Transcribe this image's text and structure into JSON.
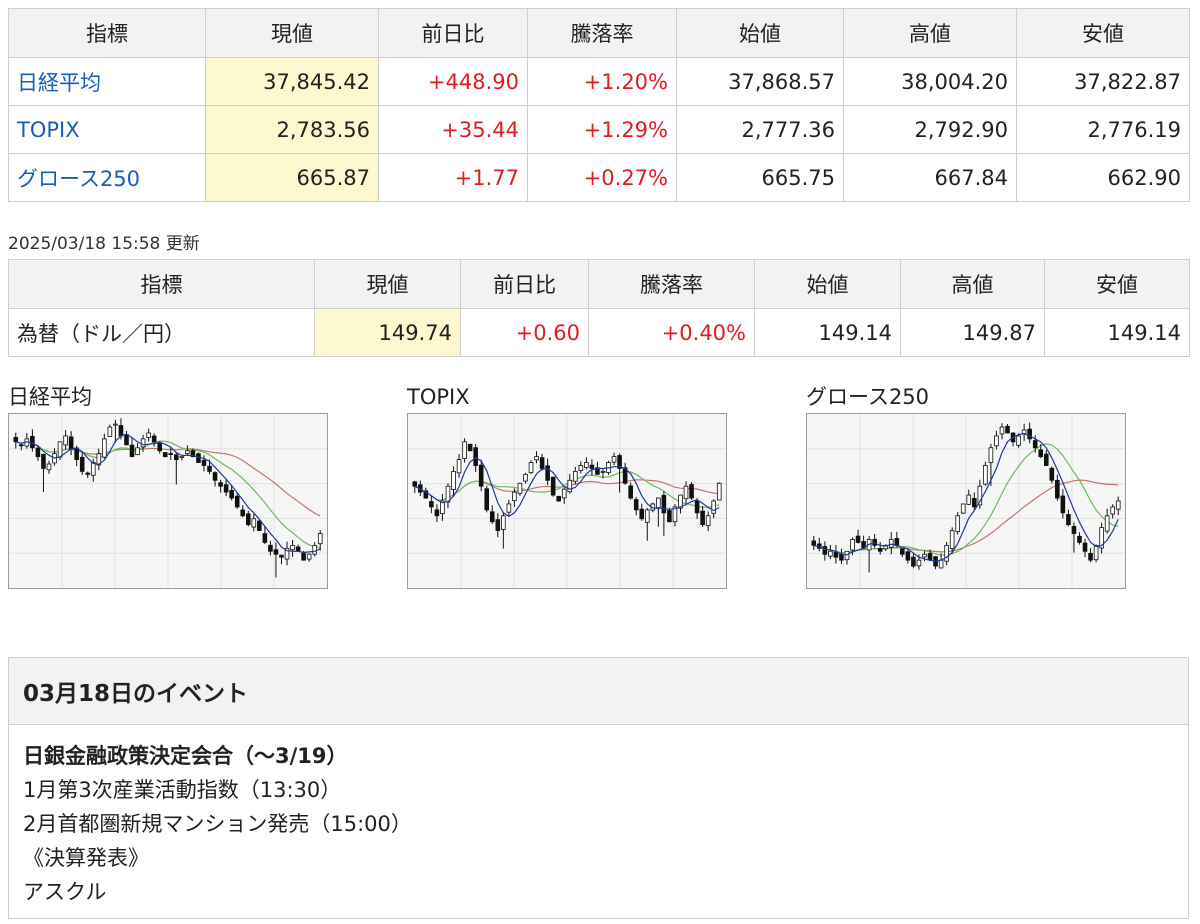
{
  "table1": {
    "headers": [
      "指標",
      "現値",
      "前日比",
      "騰落率",
      "始値",
      "高値",
      "安値"
    ],
    "rows": [
      {
        "name": "日経平均",
        "current": "37,845.42",
        "change": "+448.90",
        "rate": "+1.20%",
        "open": "37,868.57",
        "high": "38,004.20",
        "low": "37,822.87"
      },
      {
        "name": "TOPIX",
        "current": "2,783.56",
        "change": "+35.44",
        "rate": "+1.29%",
        "open": "2,777.36",
        "high": "2,792.90",
        "low": "2,776.19"
      },
      {
        "name": "グロース250",
        "current": "665.87",
        "change": "+1.77",
        "rate": "+0.27%",
        "open": "665.75",
        "high": "667.84",
        "low": "662.90"
      }
    ]
  },
  "updated": "2025/03/18 15:58 更新",
  "table2": {
    "headers": [
      "指標",
      "現値",
      "前日比",
      "騰落率",
      "始値",
      "高値",
      "安値"
    ],
    "rows": [
      {
        "name": "為替（ドル／円）",
        "current": "149.74",
        "change": "+0.60",
        "rate": "+0.40%",
        "open": "149.14",
        "high": "149.87",
        "low": "149.14"
      }
    ]
  },
  "charts": [
    {
      "title": "日経平均",
      "seed": 11,
      "closes": [
        0.4,
        0.38,
        0.42,
        0.36,
        0.3,
        0.22,
        0.25,
        0.32,
        0.4,
        0.44,
        0.35,
        0.28,
        0.2,
        0.18,
        0.26,
        0.32,
        0.42,
        0.5,
        0.52,
        0.44,
        0.38,
        0.3,
        0.36,
        0.42,
        0.46,
        0.4,
        0.34,
        0.3,
        0.32,
        0.28,
        0.3,
        0.34,
        0.3,
        0.26,
        0.24,
        0.2,
        0.14,
        0.1,
        0.06,
        0.02,
        -0.04,
        -0.1,
        -0.16,
        -0.12,
        -0.2,
        -0.28,
        -0.34,
        -0.36,
        -0.38,
        -0.32,
        -0.3,
        -0.34,
        -0.4,
        -0.36,
        -0.3,
        -0.22
      ]
    },
    {
      "title": "TOPIX",
      "seed": 23,
      "closes": [
        0.1,
        0.06,
        0.02,
        -0.04,
        -0.1,
        0.0,
        0.1,
        0.2,
        0.28,
        0.4,
        0.34,
        0.24,
        0.1,
        -0.06,
        -0.14,
        -0.2,
        -0.1,
        -0.02,
        0.06,
        0.12,
        0.18,
        0.26,
        0.3,
        0.22,
        0.14,
        0.04,
        0.0,
        0.08,
        0.14,
        0.2,
        0.24,
        0.26,
        0.22,
        0.18,
        0.2,
        0.26,
        0.3,
        0.22,
        0.12,
        0.02,
        -0.06,
        -0.12,
        -0.06,
        -0.02,
        0.02,
        -0.08,
        -0.14,
        -0.04,
        0.04,
        0.1,
        0.02,
        -0.08,
        -0.16,
        -0.1,
        0.0,
        0.12
      ]
    },
    {
      "title": "グロース250",
      "seed": 37,
      "closes": [
        -0.3,
        -0.32,
        -0.36,
        -0.34,
        -0.38,
        -0.4,
        -0.34,
        -0.26,
        -0.28,
        -0.32,
        -0.26,
        -0.3,
        -0.34,
        -0.3,
        -0.26,
        -0.3,
        -0.36,
        -0.4,
        -0.44,
        -0.4,
        -0.36,
        -0.4,
        -0.44,
        -0.4,
        -0.3,
        -0.2,
        -0.1,
        -0.02,
        0.04,
        -0.04,
        0.1,
        0.24,
        0.36,
        0.44,
        0.5,
        0.46,
        0.4,
        0.44,
        0.48,
        0.42,
        0.36,
        0.3,
        0.24,
        0.14,
        0.02,
        -0.08,
        -0.16,
        -0.22,
        -0.28,
        -0.34,
        -0.4,
        -0.3,
        -0.18,
        -0.1,
        -0.04,
        0.0
      ]
    }
  ],
  "events": {
    "title": "03月18日のイベント",
    "lines": [
      {
        "text": "日銀金融政策決定会合（～3/19）",
        "bold": true
      },
      {
        "text": "1月第3次産業活動指数（13:30）",
        "bold": false
      },
      {
        "text": "2月首都圏新規マンション発売（15:00）",
        "bold": false
      },
      {
        "text": "《決算発表》",
        "bold": false
      },
      {
        "text": "アスクル",
        "bold": false
      }
    ]
  },
  "colors": {
    "positive": "#e01b24",
    "link": "#1a5cb8",
    "current_bg": "#fdf8cf",
    "ma_short": "#1f3a93",
    "ma_mid": "#6dbb5e",
    "ma_long": "#c0776e"
  }
}
